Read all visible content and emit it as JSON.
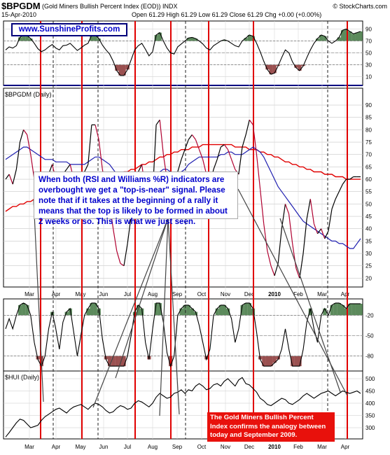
{
  "header": {
    "symbol": "$BPGDM",
    "name": "(Gold Miners Bullish Percent Index (EOD)) INDX",
    "date": "15-Apr-2010",
    "stats": "Open 61.29  High 61.29  Low 61.29  Close 61.29  Chg +0.00 (+0.00%)",
    "source": "© StockCharts.com"
  },
  "watermark_url": "www.SunshineProfits.com",
  "main_panel_label": "$BPGDM (Daily)",
  "hui_panel_label": "$HUI (Daily)",
  "annotation_text": "When both (RSI and Williams %R) indicators are overbought we get a \"top-is-near\" signal. Please note that if it takes at the beginning of a rally it means that the top is likely to be formed in about 2 weeks or so. This is what we just seen.",
  "note_text": "The Gold Miners Bullish Percent Index confirms the analogy between today and September 2009.",
  "colors": {
    "price_line": "#000000",
    "down_segment": "#b00030",
    "ma_short": "#1f1fb0",
    "ma_long": "#e00000",
    "signal_line": "#e00000",
    "overbought_fill": "#5c8a5c",
    "oversold_fill": "#9a5050",
    "blue_divider": "#000080"
  },
  "chart_data": [
    {
      "id": "rsi",
      "type": "line",
      "panel": "RSI indicator",
      "ylim": [
        0,
        100
      ],
      "yticks": [
        10,
        30,
        50,
        70,
        90
      ],
      "overbought": 70,
      "oversold": 30,
      "x": [
        0,
        5,
        10,
        15,
        20,
        25,
        30,
        35,
        40,
        45,
        50,
        55,
        60,
        65,
        70,
        75,
        80,
        85,
        90,
        95,
        100,
        105,
        110,
        115,
        120,
        125,
        130,
        135,
        140,
        145,
        150,
        155,
        160,
        165,
        170,
        175,
        180,
        185,
        190,
        195,
        200,
        205,
        210,
        215,
        220,
        225,
        230,
        235,
        240,
        245,
        250,
        255,
        260,
        265,
        270,
        275,
        280,
        285,
        290,
        295,
        300,
        305,
        310,
        315,
        320,
        325,
        330,
        335,
        340,
        345,
        350,
        355,
        360,
        365,
        370,
        375,
        380,
        385,
        390,
        395,
        400,
        405,
        410,
        415,
        420,
        425,
        430,
        435,
        440,
        445,
        450,
        455,
        460,
        465,
        470,
        475,
        480,
        485,
        490,
        495
      ],
      "y": [
        55,
        60,
        58,
        62,
        76,
        80,
        79,
        74,
        66,
        57,
        52,
        55,
        60,
        64,
        58,
        55,
        62,
        63,
        66,
        60,
        54,
        58,
        63,
        66,
        80,
        80,
        74,
        63,
        55,
        48,
        36,
        20,
        12,
        12,
        22,
        38,
        55,
        62,
        66,
        56,
        45,
        52,
        80,
        84,
        70,
        58,
        50,
        48,
        60,
        65,
        70,
        75,
        76,
        74,
        70,
        65,
        58,
        55,
        62,
        66,
        70,
        72,
        70,
        66,
        62,
        60,
        70,
        75,
        80,
        78,
        66,
        52,
        36,
        22,
        14,
        16,
        28,
        42,
        55,
        50,
        35,
        25,
        20,
        28,
        42,
        55,
        66,
        74,
        80,
        78,
        70,
        66,
        70,
        76,
        88,
        90,
        86,
        82,
        84,
        86
      ]
    },
    {
      "id": "bpgdm",
      "type": "line",
      "panel": "$BPGDM (Daily)",
      "ylim": [
        17,
        92
      ],
      "yticks": [
        20,
        25,
        30,
        35,
        40,
        45,
        50,
        55,
        60,
        65,
        70,
        75,
        80,
        85,
        90
      ],
      "xlabels": [
        "Mar",
        "Apr",
        "May",
        "Jun",
        "Jul",
        "Aug",
        "Sep",
        "Oct",
        "Nov",
        "Dec",
        "2010",
        "Feb",
        "Mar",
        "Apr"
      ],
      "x": [
        0,
        5,
        10,
        15,
        20,
        25,
        30,
        35,
        40,
        45,
        50,
        55,
        60,
        65,
        70,
        75,
        80,
        85,
        90,
        95,
        100,
        105,
        110,
        115,
        120,
        125,
        130,
        135,
        140,
        145,
        150,
        155,
        160,
        165,
        170,
        175,
        180,
        185,
        190,
        195,
        200,
        205,
        210,
        215,
        220,
        225,
        230,
        235,
        240,
        245,
        250,
        255,
        260,
        265,
        270,
        275,
        280,
        285,
        290,
        295,
        300,
        305,
        310,
        315,
        320,
        325,
        330,
        335,
        340,
        345,
        350,
        355,
        360,
        365,
        370,
        375,
        380,
        385,
        390,
        395,
        400,
        405,
        410,
        415,
        420,
        425,
        430,
        435,
        440,
        445,
        450,
        455,
        460,
        465,
        470,
        475,
        480,
        485,
        490,
        495
      ],
      "y": [
        60,
        62,
        58,
        64,
        75,
        80,
        78,
        70,
        60,
        55,
        53,
        56,
        62,
        66,
        60,
        55,
        62,
        64,
        66,
        60,
        55,
        58,
        63,
        66,
        82,
        82,
        76,
        64,
        55,
        50,
        40,
        31,
        26,
        25,
        34,
        45,
        57,
        63,
        66,
        55,
        48,
        54,
        82,
        84,
        70,
        60,
        53,
        52,
        63,
        68,
        72,
        76,
        78,
        76,
        72,
        68,
        62,
        58,
        64,
        68,
        73,
        74,
        72,
        68,
        64,
        62,
        73,
        78,
        84,
        82,
        70,
        56,
        42,
        31,
        25,
        21,
        26,
        40,
        50,
        46,
        34,
        24,
        20,
        30,
        44,
        52,
        42,
        38,
        40,
        36,
        39,
        48,
        52,
        55,
        58,
        60,
        60,
        61,
        61,
        61
      ],
      "series_ma_short": [
        68,
        69,
        70,
        71,
        72,
        73,
        73,
        72,
        71,
        70,
        69,
        68,
        68,
        68,
        67,
        67,
        67,
        67,
        66,
        66,
        66,
        66,
        66,
        67,
        68,
        69,
        69,
        68,
        67,
        66,
        64,
        62,
        59,
        57,
        56,
        55,
        55,
        56,
        57,
        57,
        57,
        58,
        61,
        63,
        64,
        64,
        63,
        62,
        62,
        63,
        64,
        66,
        67,
        68,
        69,
        69,
        69,
        69,
        69,
        69,
        70,
        70,
        71,
        71,
        70,
        70,
        70,
        71,
        72,
        73,
        72,
        71,
        69,
        66,
        63,
        60,
        57,
        55,
        53,
        51,
        49,
        47,
        45,
        43,
        42,
        41,
        40,
        39,
        38,
        37,
        36,
        35,
        35,
        34,
        34,
        33,
        32,
        32,
        34,
        36
      ],
      "series_ma_long": [
        47,
        48,
        49,
        49,
        50,
        50,
        51,
        51,
        52,
        52,
        53,
        53,
        53,
        54,
        54,
        54,
        55,
        55,
        55,
        56,
        56,
        56,
        57,
        57,
        58,
        59,
        59,
        60,
        60,
        61,
        61,
        62,
        62,
        63,
        63,
        64,
        64,
        65,
        66,
        66,
        67,
        67,
        68,
        69,
        69,
        70,
        70,
        71,
        71,
        72,
        72,
        72,
        73,
        73,
        73,
        74,
        74,
        74,
        74,
        74,
        74,
        74,
        74,
        74,
        73,
        73,
        73,
        73,
        72,
        72,
        72,
        71,
        71,
        70,
        70,
        69,
        69,
        68,
        67,
        67,
        66,
        66,
        65,
        65,
        64,
        64,
        63,
        63,
        63,
        62,
        62,
        62,
        61,
        61,
        61,
        60,
        60,
        60,
        60,
        60
      ]
    },
    {
      "id": "williams",
      "type": "line",
      "panel": "Williams %R indicator",
      "ylim": [
        -100,
        0
      ],
      "yticks": [
        -20,
        -50,
        -80
      ],
      "overbought": -20,
      "oversold": -80,
      "x": [
        0,
        5,
        10,
        15,
        20,
        25,
        30,
        35,
        40,
        45,
        50,
        55,
        60,
        65,
        70,
        75,
        80,
        85,
        90,
        95,
        100,
        105,
        110,
        115,
        120,
        125,
        130,
        135,
        140,
        145,
        150,
        155,
        160,
        165,
        170,
        175,
        180,
        185,
        190,
        195,
        200,
        205,
        210,
        215,
        220,
        225,
        230,
        235,
        240,
        245,
        250,
        255,
        260,
        265,
        270,
        275,
        280,
        285,
        290,
        295,
        300,
        305,
        310,
        315,
        320,
        325,
        330,
        335,
        340,
        345,
        350,
        355,
        360,
        365,
        370,
        375,
        380,
        385,
        390,
        395,
        400,
        405,
        410,
        415,
        420,
        425,
        430,
        435,
        440,
        445,
        450,
        455,
        460,
        465,
        470,
        475,
        480,
        485,
        490,
        495
      ],
      "y": [
        -40,
        -25,
        -40,
        -20,
        -5,
        -2,
        -5,
        -20,
        -60,
        -85,
        -95,
        -80,
        -40,
        -15,
        -40,
        -70,
        -30,
        -15,
        -10,
        -45,
        -80,
        -50,
        -20,
        -10,
        -2,
        -2,
        -10,
        -55,
        -85,
        -95,
        -95,
        -95,
        -95,
        -95,
        -80,
        -50,
        -15,
        -5,
        -10,
        -60,
        -85,
        -40,
        -2,
        -2,
        -30,
        -75,
        -95,
        -80,
        -20,
        -10,
        -5,
        -5,
        -10,
        -15,
        -35,
        -60,
        -85,
        -70,
        -20,
        -10,
        -5,
        -5,
        -10,
        -25,
        -60,
        -40,
        -5,
        -2,
        -2,
        -10,
        -45,
        -85,
        -95,
        -95,
        -95,
        -90,
        -85,
        -70,
        -40,
        -70,
        -95,
        -95,
        -95,
        -70,
        -30,
        -10,
        -40,
        -60,
        -20,
        -10,
        -20,
        -5,
        -2,
        -2,
        -5,
        -10,
        -3,
        -3,
        -3,
        -3
      ]
    },
    {
      "id": "hui",
      "type": "line",
      "panel": "$HUI (Daily)",
      "ylim": [
        260,
        520
      ],
      "yticks": [
        300,
        350,
        400,
        450,
        500
      ],
      "xlabels": [
        "Mar",
        "Apr",
        "May",
        "Jun",
        "Jul",
        "Aug",
        "Sep",
        "Oct",
        "Nov",
        "Dec",
        "2010",
        "Feb",
        "Mar",
        "Apr"
      ],
      "x": [
        0,
        5,
        10,
        15,
        20,
        25,
        30,
        35,
        40,
        45,
        50,
        55,
        60,
        65,
        70,
        75,
        80,
        85,
        90,
        95,
        100,
        105,
        110,
        115,
        120,
        125,
        130,
        135,
        140,
        145,
        150,
        155,
        160,
        165,
        170,
        175,
        180,
        185,
        190,
        195,
        200,
        205,
        210,
        215,
        220,
        225,
        230,
        235,
        240,
        245,
        250,
        255,
        260,
        265,
        270,
        275,
        280,
        285,
        290,
        295,
        300,
        305,
        310,
        315,
        320,
        325,
        330,
        335,
        340,
        345,
        350,
        355,
        360,
        365,
        370,
        375,
        380,
        385,
        390,
        395,
        400,
        405,
        410,
        415,
        420,
        425,
        430,
        435,
        440,
        445,
        450,
        455,
        460,
        465,
        470,
        475,
        480,
        485,
        490,
        495
      ],
      "y": [
        262,
        280,
        300,
        320,
        335,
        330,
        315,
        300,
        305,
        310,
        330,
        345,
        355,
        365,
        375,
        380,
        370,
        360,
        375,
        385,
        390,
        395,
        385,
        375,
        390,
        400,
        395,
        385,
        370,
        360,
        365,
        380,
        390,
        385,
        375,
        380,
        400,
        410,
        405,
        395,
        385,
        400,
        425,
        440,
        430,
        420,
        425,
        440,
        445,
        455,
        440,
        455,
        450,
        470,
        480,
        470,
        455,
        460,
        475,
        480,
        470,
        490,
        500,
        485,
        470,
        495,
        505,
        480,
        475,
        460,
        445,
        420,
        410,
        395,
        390,
        400,
        410,
        420,
        415,
        400,
        395,
        405,
        415,
        430,
        440,
        430,
        420,
        430,
        440,
        445,
        450,
        440,
        430,
        440,
        450,
        445,
        440,
        445,
        450,
        440
      ]
    }
  ],
  "signal_lines_x": [
    58,
    117,
    193,
    244,
    298,
    362,
    496
  ],
  "dashed_lines_x": [
    76,
    140,
    265,
    468
  ]
}
